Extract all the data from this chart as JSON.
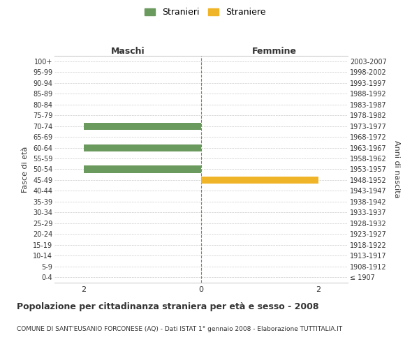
{
  "age_groups": [
    "100+",
    "95-99",
    "90-94",
    "85-89",
    "80-84",
    "75-79",
    "70-74",
    "65-69",
    "60-64",
    "55-59",
    "50-54",
    "45-49",
    "40-44",
    "35-39",
    "30-34",
    "25-29",
    "20-24",
    "15-19",
    "10-14",
    "5-9",
    "0-4"
  ],
  "birth_years": [
    "≤ 1907",
    "1908-1912",
    "1913-1917",
    "1918-1922",
    "1923-1927",
    "1928-1932",
    "1933-1937",
    "1938-1942",
    "1943-1947",
    "1948-1952",
    "1953-1957",
    "1958-1962",
    "1963-1967",
    "1968-1972",
    "1973-1977",
    "1978-1982",
    "1983-1987",
    "1988-1992",
    "1993-1997",
    "1998-2002",
    "2003-2007"
  ],
  "males": [
    0,
    0,
    0,
    0,
    0,
    0,
    2,
    0,
    2,
    0,
    2,
    0,
    0,
    0,
    0,
    0,
    0,
    0,
    0,
    0,
    0
  ],
  "females": [
    0,
    0,
    0,
    0,
    0,
    0,
    0,
    0,
    0,
    0,
    0,
    2,
    0,
    0,
    0,
    0,
    0,
    0,
    0,
    0,
    0
  ],
  "xlim": 2.5,
  "male_color": "#6b9a5e",
  "female_color": "#f0b429",
  "grid_color": "#cccccc",
  "center_line_color": "#808060",
  "title": "Popolazione per cittadinanza straniera per età e sesso - 2008",
  "subtitle": "COMUNE DI SANT'EUSANIO FORCONESE (AQ) - Dati ISTAT 1° gennaio 2008 - Elaborazione TUTTITALIA.IT",
  "xlabel_left": "Maschi",
  "xlabel_right": "Femmine",
  "ylabel_left": "Fasce di età",
  "ylabel_right": "Anni di nascita",
  "legend_male": "Stranieri",
  "legend_female": "Straniere",
  "bar_height": 0.65,
  "background_color": "#ffffff",
  "font_color": "#333333"
}
